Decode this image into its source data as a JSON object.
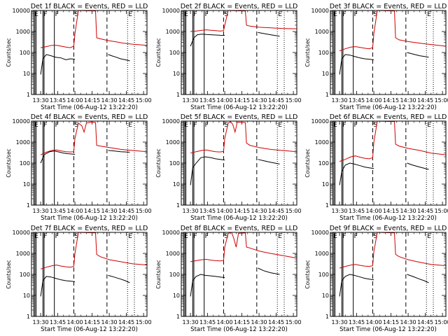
{
  "chart_data": {
    "type": "line",
    "title_template": "Det {n} BLACK = Events, RED = LLD",
    "detectors": [
      {
        "n": "1f",
        "title": "Det 1f BLACK = Events, RED = LLD",
        "events": [
          [
            0,
            9
          ],
          [
            2,
            50
          ],
          [
            5,
            80
          ],
          [
            9,
            70
          ],
          [
            13,
            60
          ],
          [
            18,
            55
          ],
          [
            22,
            45
          ],
          [
            26,
            50
          ],
          [
            30,
            48
          ],
          [
            -1,
            null
          ],
          [
            59,
            80
          ],
          [
            62,
            70
          ],
          [
            66,
            60
          ],
          [
            70,
            50
          ],
          [
            74,
            45
          ],
          [
            78,
            40
          ]
        ],
        "lld": [
          [
            0,
            170
          ],
          [
            5,
            190
          ],
          [
            10,
            220
          ],
          [
            14,
            220
          ],
          [
            18,
            200
          ],
          [
            22,
            180
          ],
          [
            26,
            170
          ],
          [
            29,
            200
          ],
          [
            30,
            800
          ],
          [
            33,
            10000
          ],
          [
            48,
            9500
          ],
          [
            49,
            500
          ],
          [
            52,
            450
          ],
          [
            56,
            400
          ],
          [
            60,
            360
          ],
          [
            66,
            320
          ],
          [
            72,
            280
          ],
          [
            80,
            250
          ],
          [
            88,
            230
          ],
          [
            93,
            220
          ]
        ]
      },
      {
        "n": "2f",
        "title": "Det 2f BLACK = Events, RED = LLD",
        "events": [
          [
            0,
            200
          ],
          [
            3,
            500
          ],
          [
            6,
            700
          ],
          [
            10,
            750
          ],
          [
            14,
            720
          ],
          [
            18,
            700
          ],
          [
            22,
            680
          ],
          [
            26,
            660
          ],
          [
            30,
            650
          ],
          [
            -1,
            null
          ],
          [
            59,
            900
          ],
          [
            64,
            800
          ],
          [
            70,
            700
          ],
          [
            78,
            600
          ]
        ],
        "lld": [
          [
            0,
            1000
          ],
          [
            5,
            1050
          ],
          [
            10,
            1150
          ],
          [
            14,
            1200
          ],
          [
            18,
            1150
          ],
          [
            22,
            1100
          ],
          [
            26,
            1050
          ],
          [
            29,
            1100
          ],
          [
            30,
            2000
          ],
          [
            33,
            10000
          ],
          [
            48,
            9500
          ],
          [
            49,
            2000
          ],
          [
            52,
            1800
          ],
          [
            60,
            1600
          ],
          [
            70,
            1500
          ],
          [
            80,
            1400
          ],
          [
            93,
            1350
          ]
        ]
      },
      {
        "n": "3f",
        "title": "Det 3f BLACK = Events, RED = LLD",
        "events": [
          [
            0,
            9
          ],
          [
            2,
            50
          ],
          [
            5,
            80
          ],
          [
            9,
            75
          ],
          [
            13,
            65
          ],
          [
            18,
            55
          ],
          [
            22,
            50
          ],
          [
            26,
            48
          ],
          [
            30,
            45
          ],
          [
            -1,
            null
          ],
          [
            59,
            100
          ],
          [
            64,
            85
          ],
          [
            70,
            70
          ],
          [
            74,
            65
          ],
          [
            78,
            60
          ]
        ],
        "lld": [
          [
            0,
            120
          ],
          [
            5,
            150
          ],
          [
            10,
            180
          ],
          [
            14,
            190
          ],
          [
            18,
            175
          ],
          [
            22,
            160
          ],
          [
            26,
            150
          ],
          [
            29,
            170
          ],
          [
            30,
            800
          ],
          [
            33,
            10000
          ],
          [
            48,
            9500
          ],
          [
            49,
            500
          ],
          [
            52,
            400
          ],
          [
            60,
            330
          ],
          [
            70,
            280
          ],
          [
            80,
            240
          ],
          [
            93,
            200
          ]
        ]
      },
      {
        "n": "4f",
        "title": "Det 4f BLACK = Events, RED = LLD",
        "events": [
          [
            0,
            100
          ],
          [
            3,
            250
          ],
          [
            8,
            350
          ],
          [
            12,
            380
          ],
          [
            16,
            340
          ],
          [
            20,
            300
          ],
          [
            24,
            280
          ],
          [
            28,
            270
          ],
          [
            30,
            260
          ],
          [
            -1,
            null
          ],
          [
            59,
            400
          ],
          [
            64,
            380
          ],
          [
            70,
            350
          ],
          [
            78,
            330
          ]
        ],
        "lld": [
          [
            0,
            250
          ],
          [
            5,
            330
          ],
          [
            10,
            400
          ],
          [
            14,
            420
          ],
          [
            18,
            380
          ],
          [
            22,
            350
          ],
          [
            26,
            340
          ],
          [
            29,
            350
          ],
          [
            30,
            1500
          ],
          [
            33,
            8000
          ],
          [
            36,
            6000
          ],
          [
            38,
            3000
          ],
          [
            40,
            8000
          ],
          [
            44,
            9000
          ],
          [
            48,
            8500
          ],
          [
            49,
            700
          ],
          [
            52,
            650
          ],
          [
            60,
            550
          ],
          [
            70,
            450
          ],
          [
            80,
            400
          ],
          [
            93,
            350
          ]
        ]
      },
      {
        "n": "5f",
        "title": "Det 5f BLACK = Events, RED = LLD",
        "events": [
          [
            0,
            9
          ],
          [
            2,
            60
          ],
          [
            5,
            100
          ],
          [
            9,
            180
          ],
          [
            13,
            200
          ],
          [
            18,
            180
          ],
          [
            22,
            160
          ],
          [
            26,
            150
          ],
          [
            30,
            140
          ],
          [
            -1,
            null
          ],
          [
            59,
            150
          ],
          [
            64,
            130
          ],
          [
            70,
            110
          ],
          [
            78,
            90
          ]
        ],
        "lld": [
          [
            0,
            300
          ],
          [
            5,
            350
          ],
          [
            10,
            400
          ],
          [
            14,
            420
          ],
          [
            18,
            380
          ],
          [
            22,
            350
          ],
          [
            26,
            340
          ],
          [
            29,
            360
          ],
          [
            30,
            1500
          ],
          [
            33,
            8000
          ],
          [
            35,
            9500
          ],
          [
            37,
            7000
          ],
          [
            39,
            3000
          ],
          [
            41,
            9000
          ],
          [
            48,
            8500
          ],
          [
            49,
            900
          ],
          [
            52,
            700
          ],
          [
            60,
            550
          ],
          [
            70,
            450
          ],
          [
            80,
            400
          ],
          [
            93,
            350
          ]
        ]
      },
      {
        "n": "6f",
        "title": "Det 6f BLACK = Events, RED = LLD",
        "events": [
          [
            0,
            9
          ],
          [
            2,
            40
          ],
          [
            5,
            80
          ],
          [
            9,
            100
          ],
          [
            13,
            90
          ],
          [
            18,
            75
          ],
          [
            22,
            65
          ],
          [
            26,
            60
          ],
          [
            30,
            55
          ],
          [
            -1,
            null
          ],
          [
            59,
            100
          ],
          [
            64,
            80
          ],
          [
            70,
            65
          ],
          [
            78,
            50
          ]
        ],
        "lld": [
          [
            0,
            120
          ],
          [
            5,
            150
          ],
          [
            10,
            200
          ],
          [
            14,
            220
          ],
          [
            18,
            190
          ],
          [
            22,
            170
          ],
          [
            26,
            160
          ],
          [
            29,
            180
          ],
          [
            30,
            1000
          ],
          [
            33,
            10000
          ],
          [
            48,
            9500
          ],
          [
            49,
            800
          ],
          [
            52,
            650
          ],
          [
            60,
            500
          ],
          [
            70,
            400
          ],
          [
            80,
            300
          ],
          [
            93,
            250
          ]
        ]
      },
      {
        "n": "7f",
        "title": "Det 7f BLACK = Events, RED = LLD",
        "events": [
          [
            0,
            9
          ],
          [
            2,
            50
          ],
          [
            5,
            80
          ],
          [
            9,
            75
          ],
          [
            13,
            65
          ],
          [
            18,
            55
          ],
          [
            22,
            50
          ],
          [
            26,
            48
          ],
          [
            30,
            45
          ],
          [
            -1,
            null
          ],
          [
            59,
            90
          ],
          [
            64,
            75
          ],
          [
            70,
            60
          ],
          [
            74,
            50
          ],
          [
            78,
            40
          ]
        ],
        "lld": [
          [
            0,
            180
          ],
          [
            5,
            220
          ],
          [
            10,
            260
          ],
          [
            14,
            280
          ],
          [
            18,
            250
          ],
          [
            22,
            230
          ],
          [
            26,
            220
          ],
          [
            29,
            240
          ],
          [
            30,
            1000
          ],
          [
            33,
            10000
          ],
          [
            48,
            9500
          ],
          [
            49,
            900
          ],
          [
            52,
            700
          ],
          [
            60,
            500
          ],
          [
            70,
            400
          ],
          [
            80,
            320
          ],
          [
            93,
            280
          ]
        ]
      },
      {
        "n": "8f",
        "title": "Det 8f BLACK = Events, RED = LLD",
        "events": [
          [
            0,
            9
          ],
          [
            2,
            50
          ],
          [
            5,
            80
          ],
          [
            9,
            100
          ],
          [
            13,
            90
          ],
          [
            18,
            85
          ],
          [
            22,
            80
          ],
          [
            26,
            75
          ],
          [
            30,
            70
          ],
          [
            -1,
            null
          ],
          [
            59,
            200
          ],
          [
            64,
            150
          ],
          [
            70,
            120
          ],
          [
            78,
            100
          ]
        ],
        "lld": [
          [
            0,
            400
          ],
          [
            5,
            450
          ],
          [
            10,
            500
          ],
          [
            14,
            520
          ],
          [
            18,
            480
          ],
          [
            22,
            450
          ],
          [
            26,
            440
          ],
          [
            29,
            460
          ],
          [
            30,
            2000
          ],
          [
            33,
            9000
          ],
          [
            36,
            10000
          ],
          [
            38,
            5000
          ],
          [
            40,
            2000
          ],
          [
            42,
            9000
          ],
          [
            48,
            9500
          ],
          [
            49,
            2000
          ],
          [
            52,
            1800
          ],
          [
            60,
            1300
          ],
          [
            70,
            1000
          ],
          [
            80,
            800
          ],
          [
            93,
            600
          ]
        ]
      },
      {
        "n": "9f",
        "title": "Det 9f BLACK = Events, RED = LLD",
        "events": [
          [
            0,
            9
          ],
          [
            2,
            50
          ],
          [
            5,
            80
          ],
          [
            9,
            100
          ],
          [
            13,
            90
          ],
          [
            18,
            75
          ],
          [
            22,
            65
          ],
          [
            26,
            60
          ],
          [
            30,
            55
          ],
          [
            -1,
            null
          ],
          [
            59,
            100
          ],
          [
            64,
            80
          ],
          [
            70,
            60
          ],
          [
            74,
            50
          ],
          [
            78,
            40
          ]
        ],
        "lld": [
          [
            0,
            200
          ],
          [
            5,
            240
          ],
          [
            10,
            280
          ],
          [
            14,
            300
          ],
          [
            18,
            270
          ],
          [
            22,
            250
          ],
          [
            26,
            240
          ],
          [
            29,
            260
          ],
          [
            30,
            1200
          ],
          [
            33,
            10000
          ],
          [
            48,
            9500
          ],
          [
            49,
            900
          ],
          [
            52,
            700
          ],
          [
            60,
            500
          ],
          [
            70,
            380
          ],
          [
            80,
            300
          ],
          [
            93,
            260
          ]
        ]
      }
    ],
    "x_tick_labels": [
      "13:30",
      "13:45",
      "14:00",
      "14:15",
      "14:30",
      "14:45",
      "15:00"
    ],
    "x_tick_minutes": [
      0,
      15,
      30,
      45,
      60,
      75,
      90
    ],
    "xlim_minutes": [
      -8,
      93
    ],
    "xlabel": "Start Time (06-Aug-12 13:22:20)",
    "ylabel": "Counts/sec",
    "y_scale": "log",
    "ylim": [
      1,
      10000
    ],
    "y_tick_labels": [
      "1",
      "10",
      "100",
      "1000",
      "10000"
    ],
    "y_tick_values": [
      1,
      10,
      100,
      1000,
      10000
    ],
    "solid_marker_minutes": [
      -6,
      -5,
      -4,
      2,
      3,
      12
    ],
    "dashed_marker_minutes": [
      29,
      58
    ],
    "dotted_marker_minutes": [
      76,
      82
    ],
    "marker_letters": [
      {
        "letter": "E",
        "minute": -6
      },
      {
        "letter": "F",
        "minute": 2
      },
      {
        "letter": "F",
        "minute": 12
      },
      {
        "letter": "S",
        "minute": 29
      },
      {
        "letter": "E",
        "minute": 76
      }
    ],
    "colors": {
      "events": "#000000",
      "lld": "#d00000"
    }
  }
}
